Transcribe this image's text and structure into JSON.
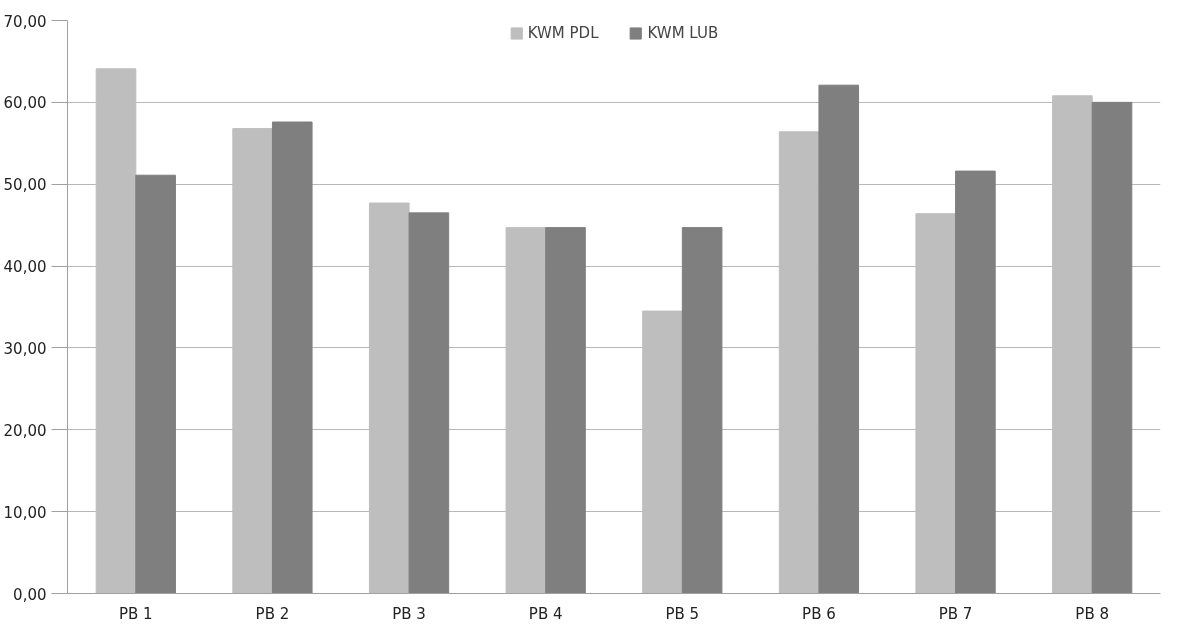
{
  "chart_data": {
    "type": "bar",
    "categories": [
      "PB 1",
      "PB 2",
      "PB 3",
      "PB 4",
      "PB 5",
      "PB 6",
      "PB 7",
      "PB 8"
    ],
    "series": [
      {
        "name": "KWM PDL",
        "color": "#bebebe",
        "values": [
          64.1,
          56.8,
          47.7,
          44.7,
          34.5,
          56.4,
          46.4,
          60.8
        ]
      },
      {
        "name": "KWM LUB",
        "color": "#7f7f7f",
        "values": [
          51.1,
          57.6,
          46.5,
          44.7,
          44.7,
          62.1,
          51.6,
          60.0
        ]
      }
    ],
    "ylim": [
      0,
      70
    ],
    "yticks": [
      {
        "value": 0,
        "label": "0,00"
      },
      {
        "value": 10,
        "label": "10,00"
      },
      {
        "value": 20,
        "label": "20,00"
      },
      {
        "value": 30,
        "label": "30,00"
      },
      {
        "value": 40,
        "label": "40,00"
      },
      {
        "value": 50,
        "label": "50,00"
      },
      {
        "value": 60,
        "label": "60,00"
      },
      {
        "value": 70,
        "label": "70,00"
      }
    ],
    "grid": "y",
    "legend": "top"
  }
}
